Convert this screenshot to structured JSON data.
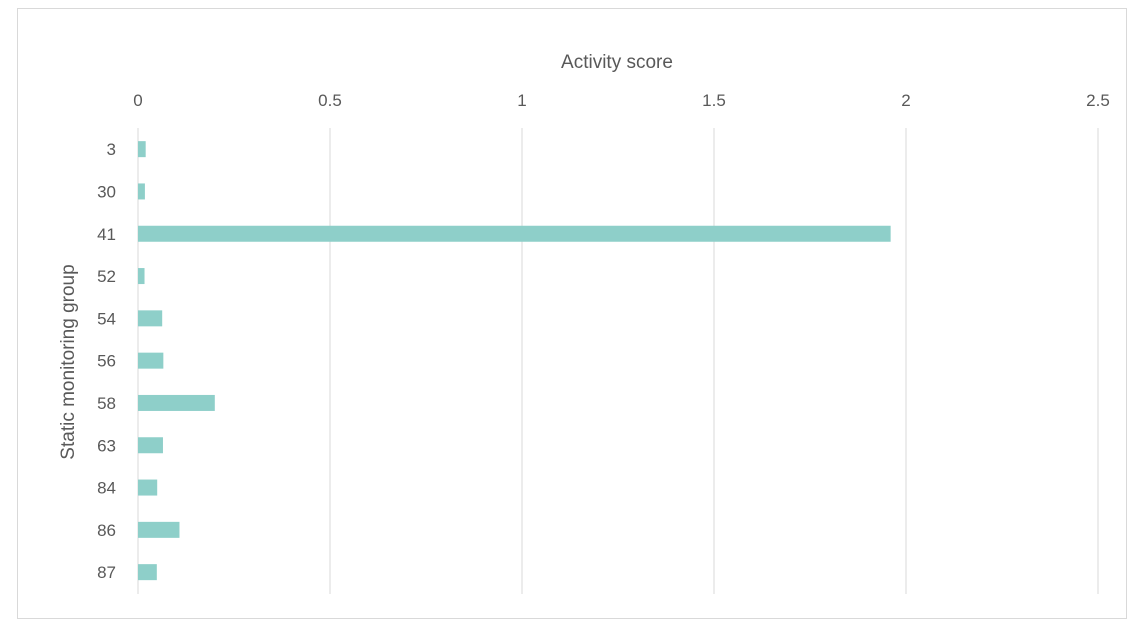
{
  "chart_data": {
    "type": "bar",
    "orientation": "horizontal",
    "title": "",
    "xlabel": "Activity score",
    "ylabel": "Static monitoring group",
    "xaxis_position": "top",
    "xlim": [
      0,
      2.5
    ],
    "xticks": [
      0,
      0.5,
      1,
      1.5,
      2,
      2.5
    ],
    "xtick_labels": [
      "0",
      "0.5",
      "1",
      "1.5",
      "2",
      "2.5"
    ],
    "grid": "vertical",
    "legend": "none",
    "categories": [
      "3",
      "30",
      "41",
      "52",
      "54",
      "56",
      "58",
      "63",
      "84",
      "86",
      "87"
    ],
    "values": [
      0.02,
      0.018,
      1.96,
      0.017,
      0.063,
      0.066,
      0.2,
      0.065,
      0.05,
      0.108,
      0.049
    ],
    "colors": {
      "bar": "#8ecfc9",
      "grid": "#d9d9d9",
      "text": "#595959",
      "border": "#d9d9d9"
    }
  }
}
